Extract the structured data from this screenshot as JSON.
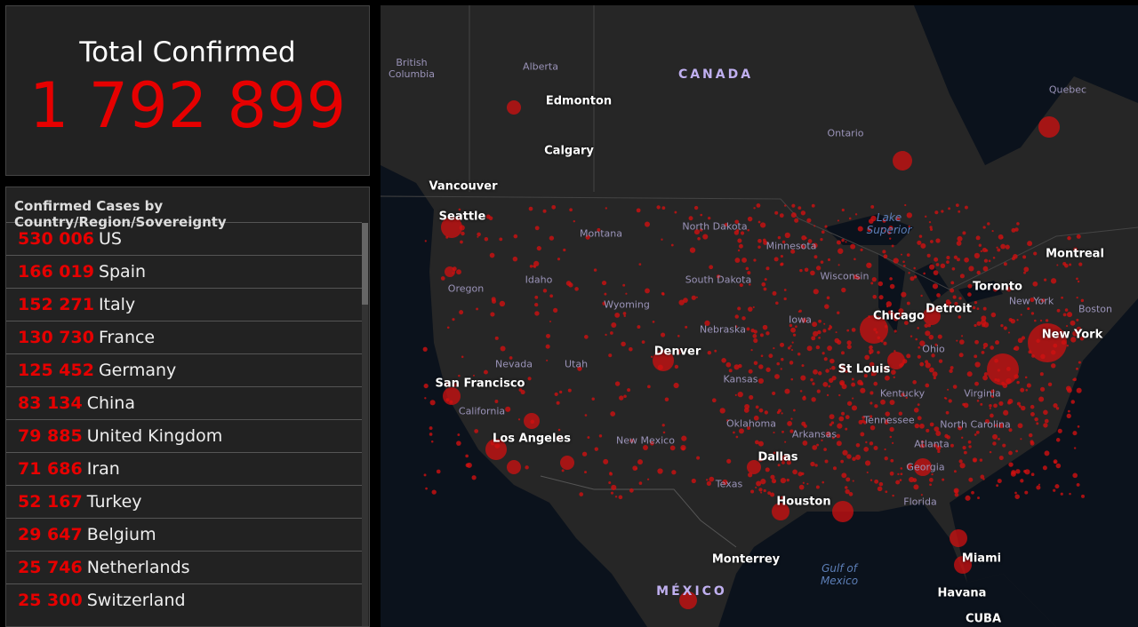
{
  "total": {
    "title": "Total Confirmed",
    "value": "1 792 899"
  },
  "list": {
    "title": "Confirmed Cases by Country/Region/Sovereignty",
    "rows": [
      {
        "count": "530 006",
        "name": "US"
      },
      {
        "count": "166 019",
        "name": "Spain"
      },
      {
        "count": "152 271",
        "name": "Italy"
      },
      {
        "count": "130 730",
        "name": "France"
      },
      {
        "count": "125 452",
        "name": "Germany"
      },
      {
        "count": "83 134",
        "name": "China"
      },
      {
        "count": "79 885",
        "name": "United Kingdom"
      },
      {
        "count": "71 686",
        "name": "Iran"
      },
      {
        "count": "52 167",
        "name": "Turkey"
      },
      {
        "count": "29 647",
        "name": "Belgium"
      },
      {
        "count": "25 746",
        "name": "Netherlands"
      },
      {
        "count": "25 300",
        "name": "Switzerland"
      }
    ]
  },
  "map": {
    "labels": [
      "British Columbia",
      "Alberta",
      "CANADA",
      "Edmonton",
      "Calgary",
      "Vancouver",
      "Seattle",
      "Quebec",
      "Ontario",
      "Lake Superior",
      "Montana",
      "North Dakota",
      "Minnesota",
      "Montreal",
      "Idaho",
      "Oregon",
      "Wyoming",
      "South Dakota",
      "Wisconsin",
      "Toronto",
      "New York",
      "Boston",
      "Chicago",
      "Detroit",
      "New York",
      "Nebraska",
      "Iowa",
      "Ohio",
      "Denver",
      "Nevada",
      "Utah",
      "St Louis",
      "Kansas",
      "San Francisco",
      "Kentucky",
      "Virginia",
      "California",
      "Tennessee",
      "North Carolina",
      "Oklahoma",
      "Arkansas",
      "Los Angeles",
      "New Mexico",
      "Atlanta",
      "Georgia",
      "Dallas",
      "Texas",
      "Houston",
      "Florida",
      "Monterrey",
      "Gulf of Mexico",
      "Miami",
      "Havana",
      "MÉXICO",
      "CUBA"
    ]
  }
}
